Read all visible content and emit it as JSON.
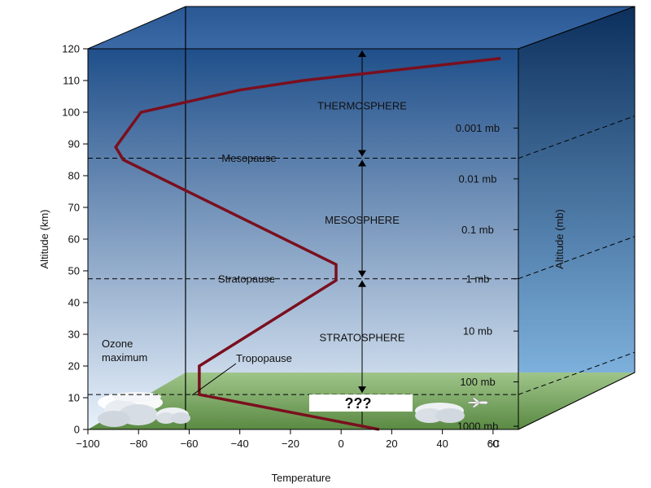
{
  "chart_data": {
    "type": "line",
    "xlabel": "Temperature",
    "ylabel": "Altitude (km)",
    "right_label": "Altitude (mb)",
    "x_unit": "°C",
    "xlim": [
      -100,
      70
    ],
    "ylim": [
      0,
      120
    ],
    "x_ticks": [
      -100,
      -80,
      -60,
      -40,
      -20,
      0,
      20,
      40,
      60
    ],
    "x_tick_labels": [
      "−100",
      "−80",
      "−60",
      "−40",
      "−20",
      "0",
      "20",
      "40",
      "60"
    ],
    "y_ticks": [
      0,
      10,
      20,
      30,
      40,
      50,
      60,
      70,
      80,
      90,
      100,
      110,
      120
    ],
    "series": [
      {
        "color": "#7a0f1e",
        "x": [
          15,
          -56,
          -56,
          -2,
          -2,
          -86,
          -89,
          -79,
          -40,
          -15,
          63
        ],
        "y": [
          0,
          11,
          20,
          47,
          52,
          85,
          89,
          100,
          107,
          110,
          117
        ]
      }
    ],
    "boundaries": [
      {
        "label": "Mesopause",
        "altitude": 85.5
      },
      {
        "label": "Stratopause",
        "altitude": 47.5
      },
      {
        "label": "Tropopause",
        "altitude": 11
      }
    ],
    "layers": [
      {
        "label": "THERMOSPHERE",
        "altitude": 102,
        "range": [
          85.5,
          120
        ]
      },
      {
        "label": "MESOSPHERE",
        "altitude": 66,
        "range": [
          47.5,
          85.5
        ]
      },
      {
        "label": "STRATOSPHERE",
        "altitude": 29,
        "range": [
          11,
          47.5
        ]
      }
    ],
    "troposphere_label": "???",
    "pressure_labels": [
      {
        "label": "0.001 mb",
        "altitude": 95
      },
      {
        "label": "0.01 mb",
        "altitude": 79
      },
      {
        "label": "0.1 mb",
        "altitude": 63
      },
      {
        "label": "1 mb",
        "altitude": 47.5
      },
      {
        "label": "10 mb",
        "altitude": 31
      },
      {
        "label": "100 mb",
        "altitude": 15
      },
      {
        "label": "1000 mb",
        "altitude": 1
      }
    ],
    "annotations": {
      "ozone": "Ozone maximum",
      "ozone_lines": [
        "Ozone",
        "maximum"
      ],
      "tropopause": "Tropopause"
    }
  },
  "colors": {
    "sky_top": "#1f4f8a",
    "sky_bottom": "#e8f1fb",
    "right_face_top": "#0c2f5c",
    "right_face_bottom": "#8fc4f0",
    "ground": "#6f9a54",
    "profile": "#7a0f1e",
    "question": "#e0151b"
  }
}
